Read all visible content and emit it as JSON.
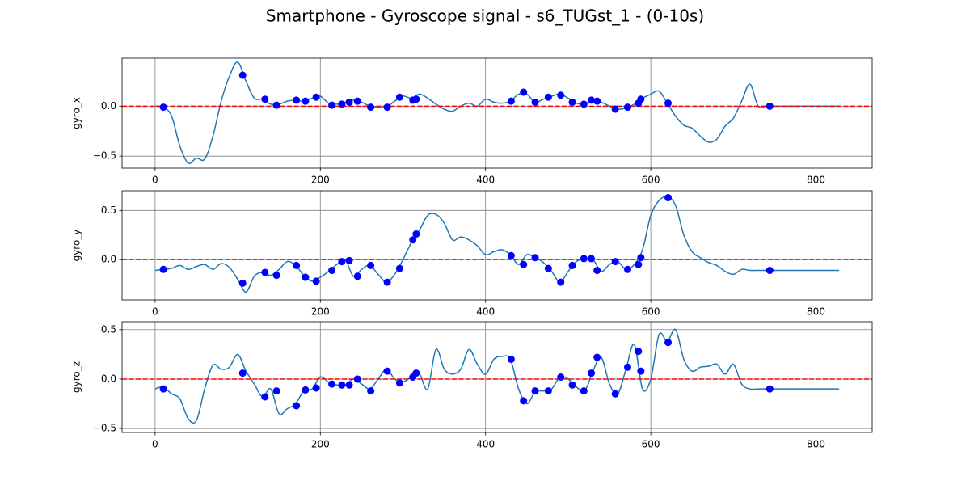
{
  "title": "Smartphone - Gyroscope signal - s6_TUGst_1 - (0-10s)",
  "chart_data": [
    {
      "type": "line",
      "ylabel": "gyro_x",
      "grid": true,
      "xlim": [
        -40,
        868
      ],
      "xticks": [
        0,
        200,
        400,
        600,
        800
      ],
      "ylim": [
        -0.62,
        0.48
      ],
      "yticks": [
        {
          "value": -0.5,
          "label": "−0.5"
        },
        {
          "value": 0,
          "label": "0.0"
        }
      ],
      "x": [
        0,
        10,
        20,
        30,
        40,
        50,
        60,
        70,
        80,
        90,
        100,
        110,
        120,
        130,
        140,
        150,
        160,
        170,
        180,
        190,
        200,
        210,
        220,
        230,
        240,
        250,
        260,
        270,
        280,
        290,
        300,
        310,
        320,
        330,
        340,
        350,
        360,
        370,
        380,
        390,
        400,
        410,
        420,
        430,
        440,
        450,
        460,
        470,
        480,
        490,
        500,
        510,
        520,
        530,
        540,
        550,
        560,
        570,
        580,
        590,
        600,
        610,
        620,
        630,
        640,
        650,
        660,
        670,
        680,
        690,
        700,
        710,
        720,
        730,
        740,
        750,
        760,
        770,
        780,
        790,
        800,
        810,
        820,
        828
      ],
      "series": [
        {
          "color": "#1f77b4",
          "values": [
            0,
            -0.01,
            -0.1,
            -0.4,
            -0.57,
            -0.52,
            -0.53,
            -0.3,
            0.05,
            0.3,
            0.44,
            0.25,
            0.08,
            0.07,
            0.02,
            0.02,
            0.05,
            0.06,
            0.05,
            0.08,
            0.1,
            0.03,
            0.02,
            0.04,
            0.06,
            0.04,
            0,
            -0.01,
            -0.01,
            0.05,
            0.1,
            0.08,
            0.12,
            0.08,
            0.02,
            -0.03,
            -0.05,
            0,
            0.03,
            0,
            0.07,
            0.04,
            0.03,
            0.05,
            0.12,
            0.12,
            0.04,
            0.07,
            0.1,
            0.12,
            0.08,
            0.03,
            0.02,
            0.06,
            0.04,
            0,
            -0.03,
            -0.02,
            0.02,
            0.08,
            0.12,
            0.15,
            0.03,
            -0.1,
            -0.19,
            -0.22,
            -0.3,
            -0.36,
            -0.33,
            -0.2,
            -0.12,
            0.05,
            0.22,
            0,
            0,
            0,
            0,
            0,
            0,
            0,
            0,
            0,
            0,
            0
          ]
        }
      ],
      "markers": {
        "color": "#0000ff",
        "x": [
          10,
          106,
          133,
          147,
          171,
          182,
          195,
          214,
          226,
          235,
          245,
          261,
          281,
          296,
          312,
          316,
          431,
          446,
          460,
          476,
          491,
          505,
          519,
          528,
          535,
          557,
          572,
          585,
          588,
          621,
          744
        ],
        "values": [
          -0.01,
          0.31,
          0.07,
          0.01,
          0.06,
          0.05,
          0.09,
          0.01,
          0.02,
          0.04,
          0.05,
          -0.01,
          -0.01,
          0.09,
          0.06,
          0.07,
          0.05,
          0.14,
          0.04,
          0.09,
          0.11,
          0.04,
          0.02,
          0.06,
          0.05,
          -0.03,
          -0.01,
          0.03,
          0.07,
          0.03,
          0
        ]
      },
      "hline": {
        "value": 0,
        "color": "#ff0000"
      }
    },
    {
      "type": "line",
      "ylabel": "gyro_y",
      "grid": true,
      "xlim": [
        -40,
        868
      ],
      "xticks": [
        0,
        200,
        400,
        600,
        800
      ],
      "ylim": [
        -0.41,
        0.7
      ],
      "yticks": [
        {
          "value": 0,
          "label": "0.0"
        },
        0.5
      ],
      "x": [
        0,
        10,
        20,
        30,
        40,
        50,
        60,
        70,
        80,
        90,
        100,
        110,
        120,
        130,
        140,
        150,
        160,
        170,
        180,
        190,
        200,
        210,
        220,
        230,
        240,
        250,
        260,
        270,
        280,
        290,
        300,
        310,
        320,
        330,
        340,
        350,
        360,
        370,
        380,
        390,
        400,
        410,
        420,
        430,
        440,
        450,
        460,
        470,
        480,
        490,
        500,
        510,
        520,
        530,
        540,
        550,
        560,
        570,
        580,
        590,
        600,
        610,
        620,
        630,
        640,
        650,
        660,
        670,
        680,
        690,
        700,
        710,
        720,
        730,
        740,
        750,
        760,
        770,
        780,
        790,
        800,
        810,
        820,
        828
      ],
      "series": [
        {
          "color": "#1f77b4",
          "values": [
            -0.11,
            -0.1,
            -0.09,
            -0.06,
            -0.1,
            -0.07,
            -0.05,
            -0.1,
            -0.04,
            -0.08,
            -0.2,
            -0.33,
            -0.17,
            -0.13,
            -0.16,
            -0.1,
            -0.02,
            -0.06,
            -0.16,
            -0.22,
            -0.18,
            -0.12,
            -0.05,
            0,
            -0.17,
            -0.1,
            -0.06,
            -0.15,
            -0.23,
            -0.15,
            0,
            0.17,
            0.3,
            0.45,
            0.46,
            0.37,
            0.2,
            0.23,
            0.2,
            0.14,
            0.05,
            0.08,
            0.1,
            0.05,
            -0.05,
            0.05,
            0.02,
            -0.03,
            -0.12,
            -0.23,
            -0.12,
            -0.02,
            0.01,
            0,
            -0.12,
            -0.05,
            -0.02,
            -0.1,
            -0.05,
            0.1,
            0.45,
            0.6,
            0.64,
            0.55,
            0.25,
            0.08,
            0.02,
            -0.03,
            -0.06,
            -0.12,
            -0.15,
            -0.1,
            -0.11,
            -0.11,
            -0.11,
            -0.11,
            -0.11,
            -0.11,
            -0.11,
            -0.11,
            -0.11,
            -0.11,
            -0.11,
            -0.11
          ]
        }
      ],
      "markers": {
        "color": "#0000ff",
        "x": [
          10,
          106,
          133,
          147,
          171,
          182,
          195,
          214,
          226,
          235,
          245,
          261,
          281,
          296,
          312,
          316,
          431,
          446,
          460,
          476,
          491,
          505,
          519,
          528,
          535,
          557,
          572,
          585,
          588,
          621,
          744
        ],
        "values": [
          -0.1,
          -0.24,
          -0.13,
          -0.16,
          -0.06,
          -0.18,
          -0.22,
          -0.11,
          -0.02,
          -0.01,
          -0.17,
          -0.06,
          -0.23,
          -0.09,
          0.2,
          0.26,
          0.04,
          -0.05,
          0.02,
          -0.09,
          -0.23,
          -0.06,
          0.01,
          0.01,
          -0.11,
          -0.02,
          -0.1,
          -0.05,
          0.02,
          0.63,
          -0.11
        ]
      },
      "hline": {
        "value": 0,
        "color": "#ff0000"
      }
    },
    {
      "type": "line",
      "ylabel": "gyro_z",
      "grid": true,
      "xlim": [
        -40,
        868
      ],
      "xticks": [
        0,
        200,
        400,
        600,
        800
      ],
      "ylim": [
        -0.54,
        0.58
      ],
      "yticks": [
        {
          "value": -0.5,
          "label": "−0.5"
        },
        {
          "value": 0,
          "label": "0.0"
        },
        0.5
      ],
      "x": [
        0,
        10,
        20,
        30,
        40,
        50,
        60,
        70,
        80,
        90,
        100,
        110,
        120,
        130,
        140,
        150,
        160,
        170,
        180,
        190,
        200,
        210,
        220,
        230,
        240,
        250,
        260,
        270,
        280,
        290,
        300,
        310,
        320,
        330,
        340,
        350,
        360,
        370,
        380,
        390,
        400,
        410,
        420,
        430,
        440,
        450,
        460,
        470,
        480,
        490,
        500,
        510,
        520,
        530,
        540,
        550,
        560,
        570,
        580,
        590,
        600,
        610,
        620,
        630,
        640,
        650,
        660,
        670,
        680,
        690,
        700,
        710,
        720,
        730,
        740,
        750,
        760,
        770,
        780,
        790,
        800,
        810,
        820,
        828
      ],
      "series": [
        {
          "color": "#1f77b4",
          "values": [
            -0.1,
            -0.08,
            -0.15,
            -0.2,
            -0.4,
            -0.42,
            -0.1,
            0.14,
            0.1,
            0.12,
            0.25,
            0.08,
            -0.05,
            -0.18,
            -0.1,
            -0.35,
            -0.3,
            -0.25,
            -0.12,
            -0.1,
            0.02,
            -0.03,
            -0.06,
            -0.06,
            0,
            -0.05,
            -0.1,
            0,
            0.1,
            0,
            -0.03,
            0.02,
            0.05,
            -0.1,
            0.3,
            0.1,
            0.05,
            0.1,
            0.3,
            0.15,
            0.05,
            0.2,
            0.23,
            0.2,
            -0.1,
            -0.25,
            -0.13,
            -0.12,
            -0.1,
            0.02,
            0,
            -0.08,
            -0.12,
            0.08,
            0.22,
            -0.05,
            -0.15,
            0.1,
            0.35,
            -0.1,
            0,
            0.45,
            0.38,
            0.5,
            0.2,
            0.08,
            0.12,
            0.13,
            0.15,
            0.05,
            0.15,
            -0.05,
            -0.1,
            -0.1,
            -0.1,
            -0.1,
            -0.1,
            -0.1,
            -0.1,
            -0.1,
            -0.1,
            -0.1,
            -0.1,
            -0.1
          ]
        }
      ],
      "markers": {
        "color": "#0000ff",
        "x": [
          10,
          106,
          133,
          147,
          171,
          182,
          195,
          214,
          226,
          235,
          245,
          261,
          281,
          296,
          312,
          316,
          431,
          446,
          460,
          476,
          491,
          505,
          519,
          528,
          535,
          557,
          572,
          585,
          588,
          621,
          744
        ],
        "values": [
          -0.1,
          0.06,
          -0.18,
          -0.12,
          -0.27,
          -0.11,
          -0.09,
          -0.05,
          -0.06,
          -0.06,
          0,
          -0.12,
          0.08,
          -0.04,
          0.02,
          0.06,
          0.2,
          -0.22,
          -0.12,
          -0.12,
          0.02,
          -0.06,
          -0.12,
          0.06,
          0.22,
          -0.15,
          0.12,
          0.28,
          0.08,
          0.37,
          -0.1
        ]
      },
      "hline": {
        "value": 0,
        "color": "#ff0000"
      }
    }
  ]
}
